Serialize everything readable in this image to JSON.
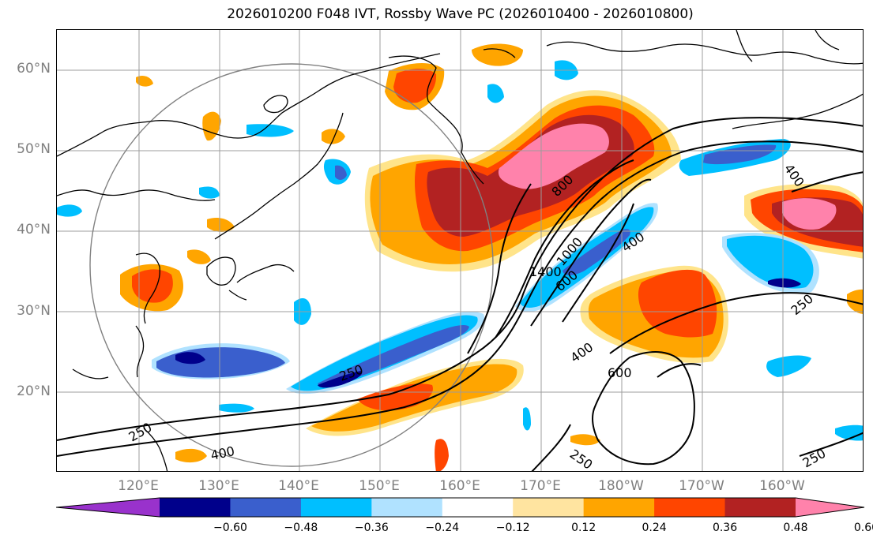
{
  "title": "2026010200 F048 IVT, Rossby Wave PC (2026010400 - 2026010800)",
  "lat_labels": [
    "60°N",
    "50°N",
    "40°N",
    "30°N",
    "20°N"
  ],
  "lon_labels": [
    "120°E",
    "130°E",
    "140°E",
    "150°E",
    "160°E",
    "170°E",
    "180°W",
    "170°W",
    "160°W"
  ],
  "contour_labels": [
    "800",
    "1400",
    "1000",
    "600",
    "400",
    "400",
    "250",
    "250",
    "400",
    "600",
    "250",
    "250",
    "250",
    "400"
  ],
  "colorbar": {
    "ticks": [
      "−0.60",
      "−0.48",
      "−0.36",
      "−0.24",
      "−0.12",
      "0.12",
      "0.24",
      "0.36",
      "0.48",
      "0.60"
    ],
    "colors": [
      "#9932cc",
      "#00008b",
      "#3a5fcd",
      "#00bfff",
      "#b0e2ff",
      "#ffffff",
      "#ffe4a0",
      "#ffa500",
      "#ff4500",
      "#b22222",
      "#ff82ab"
    ]
  },
  "colors": {
    "pos_light": "#ffe48a",
    "pos_orange": "#ffa500",
    "pos_redorange": "#ff4500",
    "pos_darkred": "#b22222",
    "pos_pink": "#ff82ab",
    "neg_light": "#b0e2ff",
    "neg_cyan": "#00bfff",
    "neg_blue": "#3a5fcd",
    "neg_navy": "#00008b",
    "grid": "#9c9c9c",
    "axis_label": "#7f7f7f"
  }
}
